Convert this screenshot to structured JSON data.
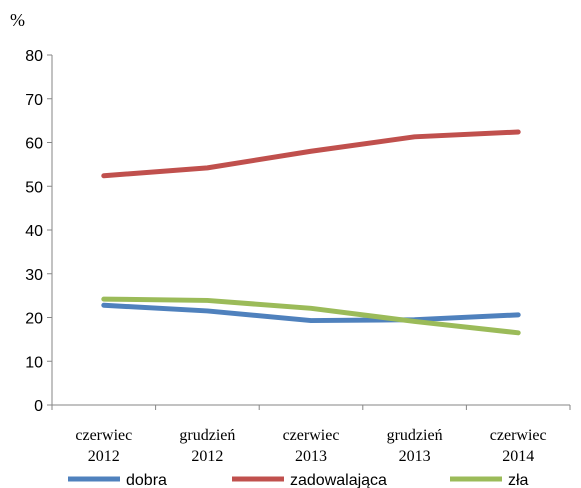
{
  "chart_data": {
    "type": "line",
    "unit_label": "%",
    "categories": [
      [
        "czerwiec",
        "2012"
      ],
      [
        "grudzień",
        "2012"
      ],
      [
        "czerwiec",
        "2013"
      ],
      [
        "grudzień",
        "2013"
      ],
      [
        "czerwiec",
        "2014"
      ]
    ],
    "yticks": [
      "0",
      "10",
      "20",
      "30",
      "40",
      "50",
      "60",
      "70",
      "80"
    ],
    "ylim": [
      0,
      80
    ],
    "grid": false,
    "legend_position": "bottom",
    "series": [
      {
        "name": "dobra",
        "color": "#4f81bd",
        "values": [
          22.8,
          21.5,
          19.3,
          19.5,
          20.6
        ]
      },
      {
        "name": "zadowalająca",
        "color": "#c0504d",
        "values": [
          52.4,
          54.2,
          58.0,
          61.3,
          62.4
        ]
      },
      {
        "name": "zła",
        "color": "#9bbb59",
        "values": [
          24.2,
          23.9,
          22.1,
          19.1,
          16.5
        ]
      }
    ]
  }
}
